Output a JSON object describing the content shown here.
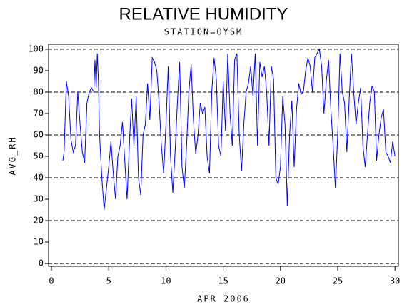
{
  "chart_data": {
    "type": "line",
    "title": "RELATIVE HUMIDITY",
    "subtitle": "STATION=OYSM",
    "x_label": "APR 2006",
    "y_label": "AVG_RH",
    "x": [
      1.0,
      1.1,
      1.3,
      1.5,
      1.7,
      1.9,
      2.1,
      2.3,
      2.5,
      2.7,
      2.9,
      3.1,
      3.3,
      3.5,
      3.7,
      3.8,
      3.9,
      4.0,
      4.1,
      4.2,
      4.4,
      4.6,
      4.8,
      5.0,
      5.2,
      5.4,
      5.6,
      5.8,
      6.0,
      6.2,
      6.4,
      6.6,
      6.8,
      7.0,
      7.2,
      7.4,
      7.6,
      7.8,
      8.0,
      8.2,
      8.4,
      8.6,
      8.8,
      9.0,
      9.2,
      9.4,
      9.6,
      9.8,
      10.0,
      10.2,
      10.4,
      10.6,
      10.8,
      11.0,
      11.2,
      11.4,
      11.6,
      11.8,
      12.0,
      12.2,
      12.4,
      12.6,
      12.8,
      13.0,
      13.2,
      13.4,
      13.6,
      13.8,
      14.0,
      14.2,
      14.4,
      14.6,
      14.8,
      15.0,
      15.2,
      15.4,
      15.6,
      15.8,
      16.0,
      16.2,
      16.4,
      16.6,
      16.8,
      17.0,
      17.2,
      17.4,
      17.6,
      17.8,
      18.0,
      18.2,
      18.4,
      18.6,
      18.8,
      19.0,
      19.2,
      19.4,
      19.6,
      19.8,
      20.0,
      20.2,
      20.4,
      20.6,
      20.8,
      21.0,
      21.2,
      21.4,
      21.6,
      21.8,
      22.0,
      22.2,
      22.4,
      22.6,
      22.8,
      23.0,
      23.2,
      23.4,
      23.6,
      23.8,
      24.0,
      24.2,
      24.4,
      24.6,
      24.8,
      25.0,
      25.2,
      25.4,
      25.6,
      25.8,
      26.0,
      26.2,
      26.4,
      26.6,
      26.8,
      27.0,
      27.2,
      27.4,
      27.6,
      27.8,
      28.0,
      28.2,
      28.4,
      28.6,
      28.8,
      29.0,
      29.2,
      29.4,
      29.6,
      29.8,
      30.0
    ],
    "series": [
      {
        "name": "AVG_RH",
        "color": "#0000ff",
        "values": [
          48,
          52,
          85,
          78,
          58,
          52,
          55,
          80,
          65,
          52,
          47,
          75,
          80,
          82,
          80,
          95,
          82,
          98,
          85,
          60,
          40,
          25,
          35,
          45,
          57,
          42,
          30,
          50,
          55,
          66,
          48,
          30,
          55,
          77,
          55,
          78,
          40,
          32,
          60,
          65,
          84,
          67,
          96,
          94,
          90,
          75,
          55,
          42,
          65,
          92,
          50,
          33,
          52,
          75,
          94,
          45,
          35,
          55,
          80,
          93,
          67,
          51,
          60,
          75,
          70,
          73,
          50,
          42,
          80,
          96,
          86,
          55,
          50,
          85,
          62,
          98,
          70,
          55,
          95,
          98,
          60,
          43,
          65,
          80,
          84,
          92,
          78,
          98,
          55,
          94,
          87,
          92,
          80,
          55,
          92,
          86,
          40,
          37,
          45,
          78,
          65,
          27,
          60,
          76,
          45,
          72,
          84,
          79,
          80,
          90,
          96,
          92,
          80,
          96,
          98,
          100,
          92,
          70,
          85,
          95,
          72,
          55,
          35,
          60,
          98,
          80,
          75,
          52,
          76,
          98,
          80,
          65,
          75,
          82,
          55,
          45,
          60,
          75,
          83,
          80,
          48,
          60,
          68,
          72,
          52,
          50,
          47,
          57,
          50
        ]
      }
    ],
    "xlim": [
      -0.25,
      30.3
    ],
    "ylim": [
      -1.3,
      102.3
    ],
    "xticks": [
      0,
      5,
      10,
      15,
      20,
      25,
      30
    ],
    "yticks": [
      0,
      10,
      20,
      30,
      40,
      50,
      60,
      70,
      80,
      90,
      100
    ],
    "ygrid": [
      0,
      20,
      40,
      60,
      80,
      100
    ]
  }
}
